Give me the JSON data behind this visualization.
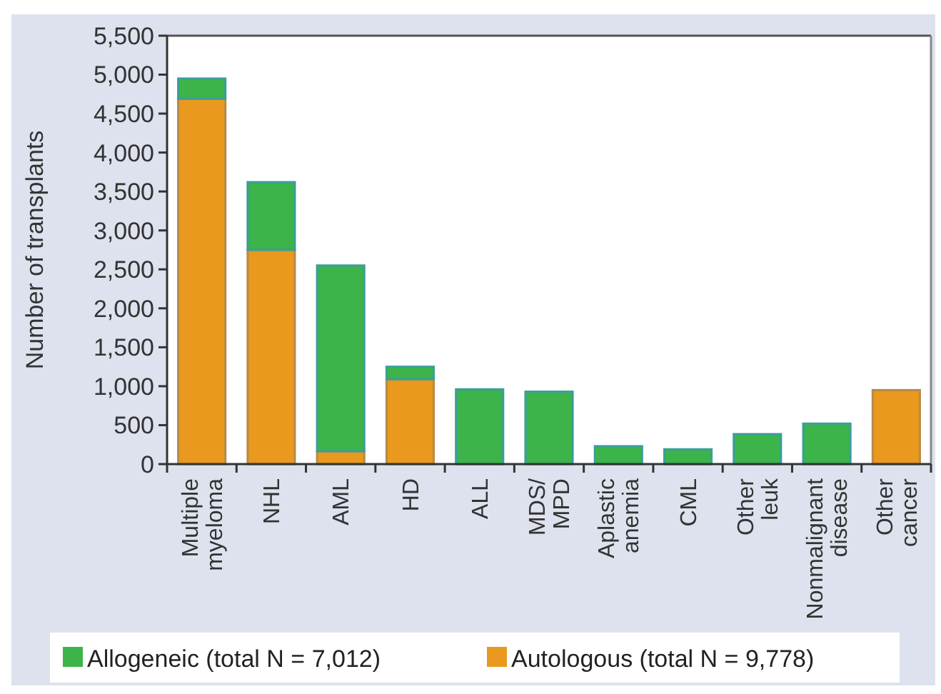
{
  "chart_data": {
    "type": "bar",
    "stacked": true,
    "ylabel": "Number of transplants",
    "categories": [
      "Multiple\nmyeloma",
      "NHL",
      "AML",
      "HD",
      "ALL",
      "MDS/\nMPD",
      "Aplastic\nanemia",
      "CML",
      "Other\nleuk",
      "Nonmalignant\ndisease",
      "Other\ncancer"
    ],
    "series": [
      {
        "name": "Autologous (total N = 9,778)",
        "color": "#e8991e",
        "values": [
          4690,
          2750,
          165,
          1090,
          null,
          null,
          null,
          null,
          null,
          null,
          950
        ]
      },
      {
        "name": "Allogeneic (total N = 7,012)",
        "color": "#3cb44a",
        "values": [
          260,
          870,
          2385,
          160,
          960,
          930,
          230,
          190,
          385,
          520,
          null
        ]
      }
    ],
    "ylim": [
      0,
      5500
    ],
    "yticks": [
      0,
      500,
      {
        "value": 1000,
        "label": "1,000"
      },
      {
        "value": 1500,
        "label": "1,500"
      },
      {
        "value": 2000,
        "label": "2,000"
      },
      {
        "value": 2500,
        "label": "2,500"
      },
      {
        "value": 3000,
        "label": "3,000"
      },
      {
        "value": 3500,
        "label": "3,500"
      },
      {
        "value": 4000,
        "label": "4,000"
      },
      {
        "value": 4500,
        "label": "4,500"
      },
      {
        "value": 5000,
        "label": "5,000"
      },
      {
        "value": 5500,
        "label": "5,500"
      }
    ],
    "grid": false,
    "legend": "bottom"
  }
}
